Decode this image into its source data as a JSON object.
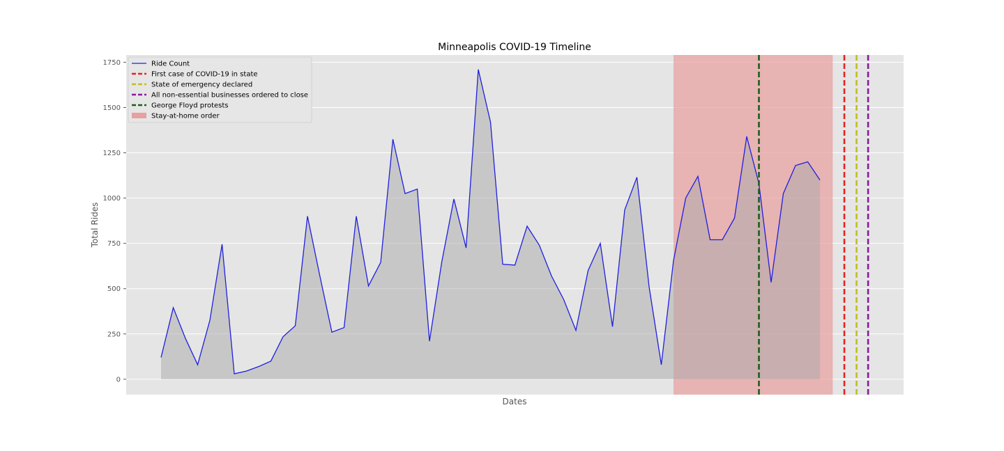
{
  "chart_data": {
    "type": "area",
    "title": "Minneapolis COVID-19 Timeline",
    "xlabel": "Dates",
    "ylabel": "Total Rides",
    "ylim": [
      -85,
      1790
    ],
    "yticks": [
      0,
      250,
      500,
      750,
      1000,
      1250,
      1500,
      1750
    ],
    "grid": true,
    "legend_position": "top-left",
    "series": [
      {
        "name": "Ride Count",
        "color": "#1f1fdf",
        "fill_color": "#c7c7c7",
        "values": [
          120,
          395,
          225,
          80,
          325,
          745,
          30,
          45,
          70,
          100,
          235,
          295,
          900,
          575,
          260,
          285,
          900,
          515,
          645,
          1325,
          1025,
          1050,
          210,
          645,
          995,
          725,
          1710,
          1420,
          635,
          630,
          845,
          740,
          570,
          440,
          270,
          600,
          750,
          290,
          935,
          1115,
          510,
          80,
          655,
          1000,
          1120,
          770,
          770,
          890,
          1340,
          1080,
          535,
          1025,
          1180,
          1200,
          1100
        ]
      }
    ],
    "events": [
      {
        "label": "First case of COVID-19 in state",
        "color": "#e8231f",
        "at_index": 56.0
      },
      {
        "label": "State of emergency declared",
        "color": "#bfbf1f",
        "at_index": 57.0
      },
      {
        "label": "All non-essential businesses ordered to close",
        "color": "#8a1a9a",
        "at_index": 57.95
      },
      {
        "label": "George Floyd protests",
        "color": "#1a5e1a",
        "at_index": 49.0
      }
    ],
    "shaded_region": {
      "label": "Stay-at-home order",
      "color": "#e8a0a0",
      "from_index": 42.0,
      "to_index": 55.05
    }
  }
}
